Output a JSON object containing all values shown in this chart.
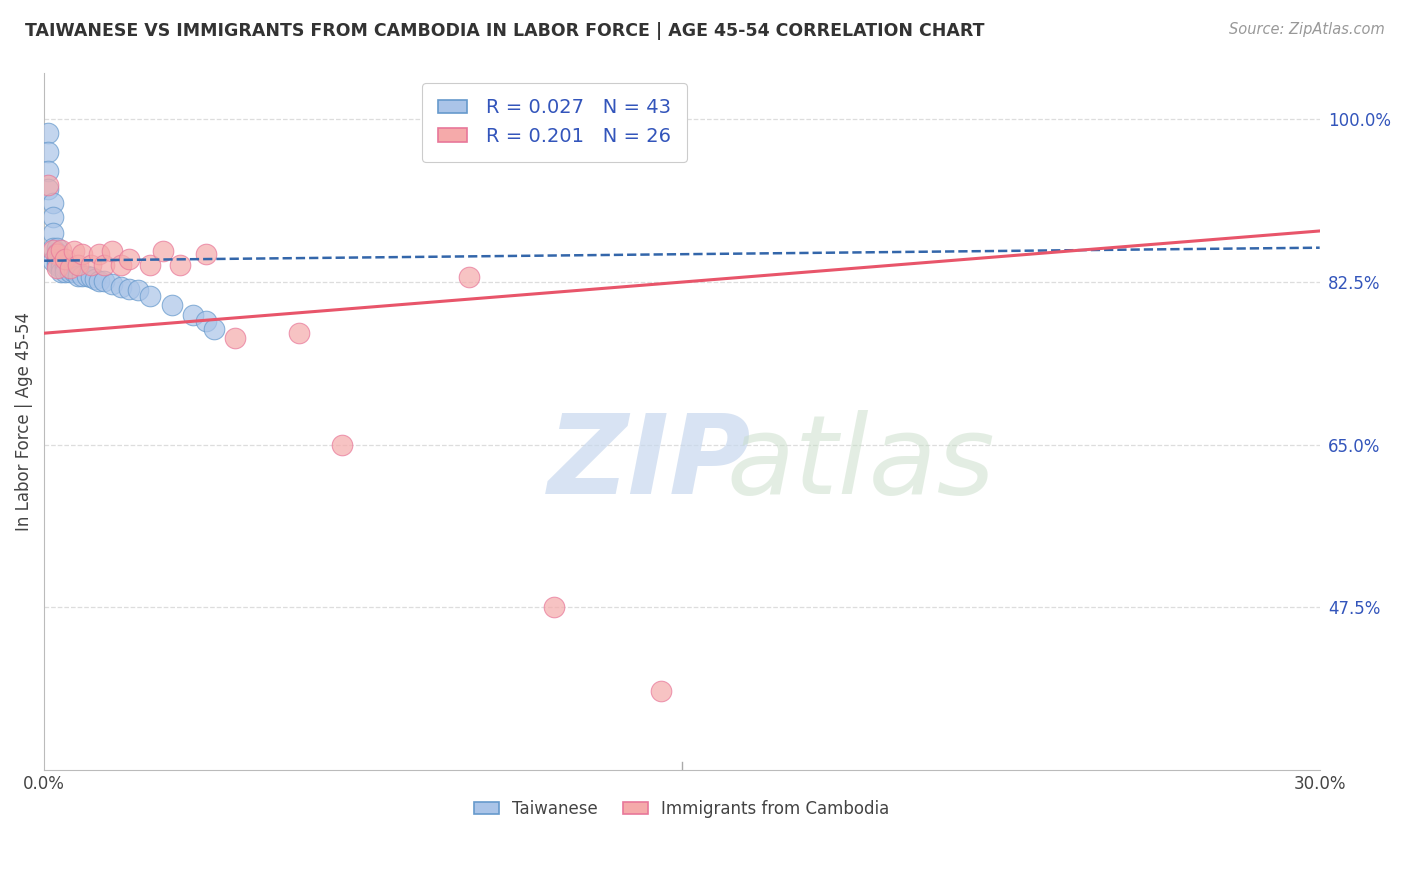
{
  "title": "TAIWANESE VS IMMIGRANTS FROM CAMBODIA IN LABOR FORCE | AGE 45-54 CORRELATION CHART",
  "source": "Source: ZipAtlas.com",
  "ylabel": "In Labor Force | Age 45-54",
  "ytick_labels": [
    "100.0%",
    "82.5%",
    "65.0%",
    "47.5%"
  ],
  "ytick_values": [
    1.0,
    0.825,
    0.65,
    0.475
  ],
  "xlim": [
    0.0,
    0.3
  ],
  "ylim": [
    0.3,
    1.05
  ],
  "blue_R": 0.027,
  "blue_N": 43,
  "pink_R": 0.201,
  "pink_N": 26,
  "blue_color": "#aac4e8",
  "pink_color": "#f5aaaa",
  "blue_edge_color": "#6699cc",
  "pink_edge_color": "#e87799",
  "blue_line_color": "#3366aa",
  "pink_line_color": "#e8556a",
  "legend_label_blue": "Taiwanese",
  "legend_label_pink": "Immigrants from Cambodia",
  "blue_points_x": [
    0.001,
    0.001,
    0.001,
    0.001,
    0.002,
    0.002,
    0.002,
    0.002,
    0.002,
    0.003,
    0.003,
    0.003,
    0.003,
    0.003,
    0.003,
    0.004,
    0.004,
    0.004,
    0.004,
    0.005,
    0.005,
    0.005,
    0.006,
    0.006,
    0.007,
    0.007,
    0.008,
    0.008,
    0.009,
    0.01,
    0.011,
    0.012,
    0.013,
    0.014,
    0.016,
    0.018,
    0.02,
    0.022,
    0.025,
    0.03,
    0.035,
    0.038,
    0.04
  ],
  "blue_points_y": [
    0.985,
    0.965,
    0.945,
    0.925,
    0.91,
    0.895,
    0.878,
    0.862,
    0.848,
    0.862,
    0.856,
    0.853,
    0.85,
    0.847,
    0.843,
    0.848,
    0.843,
    0.84,
    0.836,
    0.843,
    0.84,
    0.836,
    0.84,
    0.836,
    0.84,
    0.836,
    0.836,
    0.832,
    0.832,
    0.832,
    0.83,
    0.828,
    0.826,
    0.826,
    0.823,
    0.82,
    0.818,
    0.816,
    0.81,
    0.8,
    0.79,
    0.783,
    0.775
  ],
  "pink_points_x": [
    0.001,
    0.002,
    0.003,
    0.003,
    0.004,
    0.005,
    0.006,
    0.007,
    0.008,
    0.009,
    0.011,
    0.013,
    0.014,
    0.016,
    0.018,
    0.02,
    0.025,
    0.028,
    0.032,
    0.038,
    0.045,
    0.06,
    0.07,
    0.1,
    0.12,
    0.145
  ],
  "pink_points_y": [
    0.93,
    0.86,
    0.855,
    0.84,
    0.86,
    0.85,
    0.84,
    0.858,
    0.843,
    0.855,
    0.843,
    0.855,
    0.843,
    0.858,
    0.843,
    0.85,
    0.843,
    0.858,
    0.843,
    0.855,
    0.765,
    0.77,
    0.65,
    0.83,
    0.475,
    0.385
  ],
  "blue_trend_x": [
    0.0,
    0.3
  ],
  "blue_trend_y": [
    0.848,
    0.862
  ],
  "pink_trend_x": [
    0.0,
    0.3
  ],
  "pink_trend_y": [
    0.77,
    0.88
  ]
}
